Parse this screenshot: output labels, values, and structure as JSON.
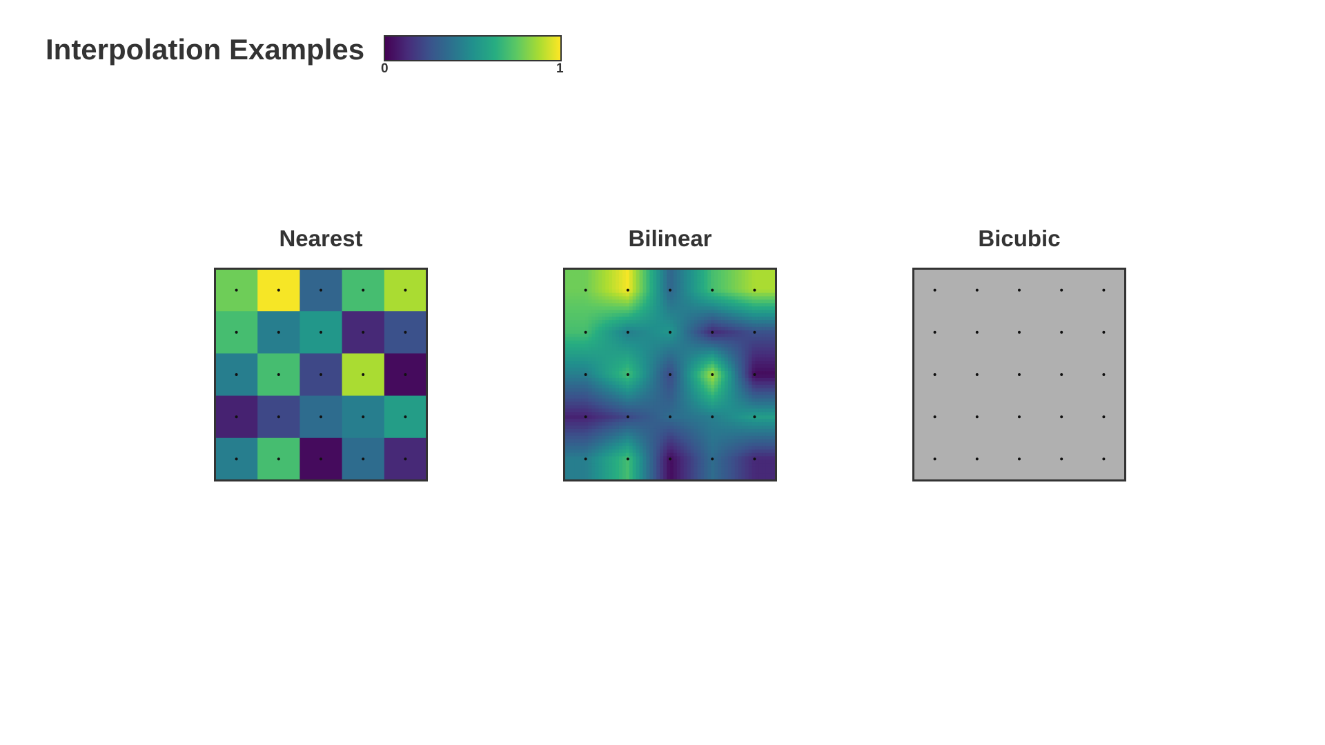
{
  "chart_data": {
    "type": "heatmap",
    "title": "Interpolation Examples",
    "colormap": "viridis",
    "colorbar": {
      "min_label": "0",
      "max_label": "1",
      "range": [
        0,
        1
      ]
    },
    "grid": [
      [
        0.78,
        0.99,
        0.33,
        0.7,
        0.88
      ],
      [
        0.7,
        0.43,
        0.53,
        0.12,
        0.25
      ],
      [
        0.43,
        0.7,
        0.22,
        0.88,
        0.03
      ],
      [
        0.1,
        0.22,
        0.36,
        0.43,
        0.56
      ],
      [
        0.43,
        0.7,
        0.03,
        0.36,
        0.12
      ]
    ],
    "panels": [
      {
        "title": "Nearest",
        "method": "nearest"
      },
      {
        "title": "Bilinear",
        "method": "bilinear"
      },
      {
        "title": "Bicubic",
        "method": "none",
        "fill": "#b0b0b0"
      }
    ]
  },
  "colors": {
    "frame": "#333333",
    "sample_dot": "#111111",
    "text": "#333333"
  }
}
